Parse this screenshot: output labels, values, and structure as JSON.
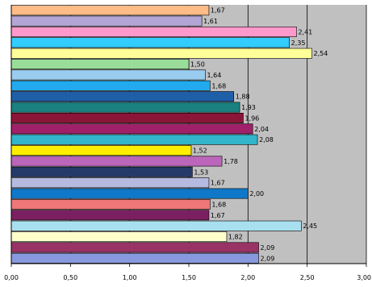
{
  "chart_data": {
    "type": "bar",
    "orientation": "horizontal",
    "xlim": [
      0,
      3
    ],
    "x_ticks": [
      0,
      0.5,
      1,
      1.5,
      2,
      2.5,
      3
    ],
    "x_tick_labels": [
      "0,00",
      "0,50",
      "1,00",
      "1,50",
      "2,00",
      "2,50",
      "3,00"
    ],
    "grid": "vertical gridlines",
    "plot_background": "#c0c0c0",
    "values": [
      1.67,
      1.61,
      2.41,
      2.35,
      2.54,
      1.5,
      1.64,
      1.68,
      1.88,
      1.93,
      1.96,
      2.04,
      2.08,
      1.52,
      1.78,
      1.53,
      1.67,
      2.0,
      1.68,
      1.67,
      2.45,
      1.82,
      2.09,
      2.09
    ],
    "value_labels": [
      "1,67",
      "1,61",
      "2,41",
      "2,35",
      "2,54",
      "1,50",
      "1,64",
      "1,68",
      "1,88",
      "1,93",
      "1,96",
      "2,04",
      "2,08",
      "1,52",
      "1,78",
      "1,53",
      "1,67",
      "2,00",
      "1,68",
      "1,67",
      "2,45",
      "1,82",
      "2,09",
      "2,09"
    ],
    "bar_colors": [
      "#ffbb88",
      "#b3a5d5",
      "#ff99cc",
      "#33ccff",
      "#ffff99",
      "#99dd99",
      "#99ccee",
      "#22aaee",
      "#1f5fa8",
      "#1a8080",
      "#8b1538",
      "#a0206a",
      "#33b5cc",
      "#ffee00",
      "#bb66bb",
      "#263a6a",
      "#b5bbe0",
      "#1078c8",
      "#ee7777",
      "#7a2060",
      "#a8e0f0",
      "#ffffcc",
      "#993366",
      "#8899dd"
    ]
  }
}
